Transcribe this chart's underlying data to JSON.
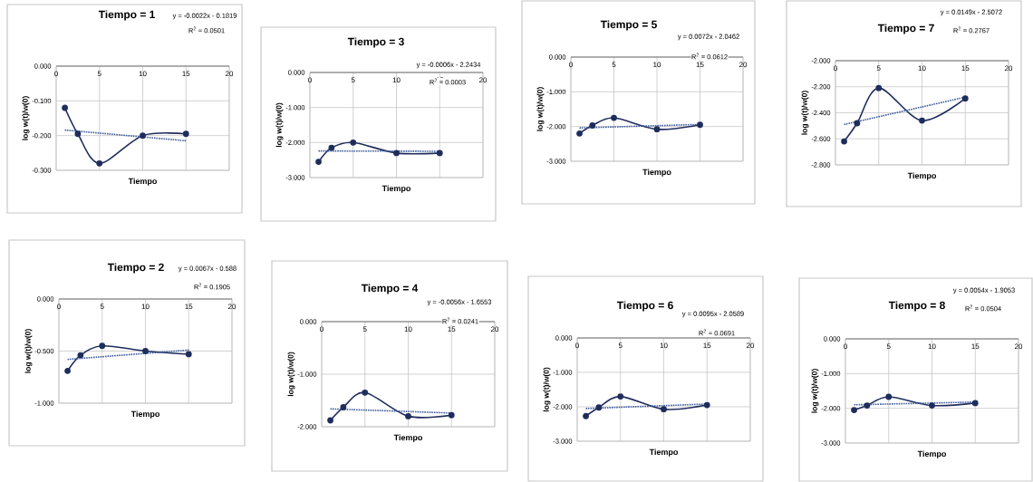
{
  "chart_data": [
    {
      "type": "line",
      "title": "Tiempo = 1",
      "xlabel": "Tiempo",
      "ylabel": "log w(t)/w(0)",
      "annotations": [
        "y = -0.0022x - 0.1819",
        "R$^{2}$ = 0.0501"
      ],
      "xlim": [
        0,
        20
      ],
      "xticks": [
        0,
        5,
        10,
        15,
        20
      ],
      "ylim": [
        -0.3,
        0
      ],
      "yticks": [
        {
          "value": -0.3,
          "label": "-0.300"
        },
        {
          "value": -0.2,
          "label": "-0.200"
        },
        {
          "value": -0.1,
          "label": "-0.100"
        },
        {
          "value": 0,
          "label": "0.000"
        }
      ],
      "grid": true,
      "series": [
        {
          "x": [
            1,
            2.5,
            5,
            10,
            15
          ],
          "values": [
            -0.12,
            -0.195,
            -0.28,
            -0.2,
            -0.195
          ],
          "color": "#1f2d5c",
          "marker": "circle",
          "line_style": "solid"
        },
        {
          "x": [
            1,
            15
          ],
          "values": [
            -0.184,
            -0.215
          ],
          "color": "#3b5a9a",
          "marker": "none",
          "line_style": "dotted"
        }
      ]
    },
    {
      "type": "line",
      "title": "Tiempo = 3",
      "xlabel": "Tiempo",
      "ylabel": "log w(t)/w(0)",
      "annotations": [
        "y = -0.0006x - 2.2434",
        "R$^{2}$ = 0.0003"
      ],
      "xlim": [
        0,
        20
      ],
      "xticks": [
        0,
        5,
        10,
        15,
        20
      ],
      "ylim": [
        -3,
        0
      ],
      "yticks": [
        {
          "value": -3,
          "label": "-3.000"
        },
        {
          "value": -2,
          "label": "-2.000"
        },
        {
          "value": -1,
          "label": "-1.000"
        },
        {
          "value": 0,
          "label": "0.000"
        }
      ],
      "grid": true,
      "series": [
        {
          "x": [
            1,
            2.5,
            5,
            10,
            15
          ],
          "values": [
            -2.55,
            -2.15,
            -2.0,
            -2.3,
            -2.3
          ],
          "color": "#1f2d5c",
          "marker": "circle",
          "line_style": "solid"
        },
        {
          "x": [
            1,
            15
          ],
          "values": [
            -2.24,
            -2.25
          ],
          "color": "#3b5a9a",
          "marker": "none",
          "line_style": "dotted"
        }
      ]
    },
    {
      "type": "line",
      "title": "Tiempo = 5",
      "xlabel": "Tiempo",
      "ylabel": "log w(t)/w(0)",
      "annotations": [
        "y = 0.0072x - 2.0462",
        "R$^{2}$ = 0.0612"
      ],
      "xlim": [
        0,
        20
      ],
      "xticks": [
        0,
        5,
        10,
        15,
        20
      ],
      "ylim": [
        -3,
        0
      ],
      "yticks": [
        {
          "value": -3,
          "label": "-3.000"
        },
        {
          "value": -2,
          "label": "-2.000"
        },
        {
          "value": -1,
          "label": "-1.000"
        },
        {
          "value": 0,
          "label": "0.000"
        }
      ],
      "grid": true,
      "series": [
        {
          "x": [
            1,
            2.5,
            5,
            10,
            15
          ],
          "values": [
            -2.2,
            -1.97,
            -1.75,
            -2.08,
            -1.95
          ],
          "color": "#1f2d5c",
          "marker": "circle",
          "line_style": "solid"
        },
        {
          "x": [
            1,
            15
          ],
          "values": [
            -2.04,
            -1.94
          ],
          "color": "#3b5a9a",
          "marker": "none",
          "line_style": "dotted"
        }
      ]
    },
    {
      "type": "line",
      "title": "Tiempo = 7",
      "xlabel": "Tiempo",
      "ylabel": "log w(t)/w(0)",
      "annotations": [
        "y = 0.0149x - 2.5072",
        "R$^{2}$ = 0.2767"
      ],
      "xlim": [
        0,
        20
      ],
      "xticks": [
        0,
        5,
        10,
        15,
        20
      ],
      "ylim": [
        -2.8,
        -2.0
      ],
      "yticks": [
        {
          "value": -2.8,
          "label": "-2.800"
        },
        {
          "value": -2.6,
          "label": "-2.600"
        },
        {
          "value": -2.4,
          "label": "-2.400"
        },
        {
          "value": -2.2,
          "label": "-2.200"
        },
        {
          "value": -2.0,
          "label": "-2.000"
        }
      ],
      "grid": true,
      "series": [
        {
          "x": [
            1,
            2.5,
            5,
            10,
            15
          ],
          "values": [
            -2.62,
            -2.48,
            -2.21,
            -2.46,
            -2.29
          ],
          "color": "#1f2d5c",
          "marker": "circle",
          "line_style": "solid"
        },
        {
          "x": [
            1,
            15
          ],
          "values": [
            -2.49,
            -2.28
          ],
          "color": "#3b5a9a",
          "marker": "none",
          "line_style": "dotted"
        }
      ]
    },
    {
      "type": "line",
      "title": "Tiempo = 2",
      "xlabel": "Tiempo",
      "ylabel": "log w(t)/w(0)",
      "annotations": [
        "y = 0.0067x - 0.588",
        "R$^{2}$ = 0.1905"
      ],
      "xlim": [
        0,
        20
      ],
      "xticks": [
        0,
        5,
        10,
        15,
        20
      ],
      "ylim": [
        -1,
        0
      ],
      "yticks": [
        {
          "value": -1,
          "label": "-1.000"
        },
        {
          "value": -0.5,
          "label": "-0.500"
        },
        {
          "value": 0,
          "label": "0.000"
        }
      ],
      "grid": true,
      "series": [
        {
          "x": [
            1,
            2.5,
            5,
            10,
            15
          ],
          "values": [
            -0.69,
            -0.54,
            -0.45,
            -0.5,
            -0.53
          ],
          "color": "#1f2d5c",
          "marker": "circle",
          "line_style": "solid"
        },
        {
          "x": [
            1,
            15
          ],
          "values": [
            -0.58,
            -0.49
          ],
          "color": "#3b5a9a",
          "marker": "none",
          "line_style": "dotted"
        }
      ]
    },
    {
      "type": "line",
      "title": "Tiempo = 4",
      "xlabel": "Tiempo",
      "ylabel": "log w(t)/w(0)",
      "annotations": [
        "y = -0.0056x - 1.6553",
        "R$^{2}$ = 0.0241"
      ],
      "xlim": [
        0,
        20
      ],
      "xticks": [
        0,
        5,
        10,
        15,
        20
      ],
      "ylim": [
        -2,
        0
      ],
      "yticks": [
        {
          "value": -2,
          "label": "-2.000"
        },
        {
          "value": -1,
          "label": "-1.000"
        },
        {
          "value": 0,
          "label": "0.000"
        }
      ],
      "grid": true,
      "series": [
        {
          "x": [
            1,
            2.5,
            5,
            10,
            15
          ],
          "values": [
            -1.88,
            -1.63,
            -1.35,
            -1.8,
            -1.78
          ],
          "color": "#1f2d5c",
          "marker": "circle",
          "line_style": "solid"
        },
        {
          "x": [
            1,
            15
          ],
          "values": [
            -1.66,
            -1.74
          ],
          "color": "#3b5a9a",
          "marker": "none",
          "line_style": "dotted"
        }
      ]
    },
    {
      "type": "line",
      "title": "Tiempo = 6",
      "xlabel": "Tiempo",
      "ylabel": "log w(t)/w(0)",
      "annotations": [
        "y = 0.0095x - 2.0589",
        "R$^{2}$ = 0.0691"
      ],
      "xlim": [
        0,
        20
      ],
      "xticks": [
        0,
        5,
        10,
        15,
        20
      ],
      "ylim": [
        -3,
        0
      ],
      "yticks": [
        {
          "value": -3,
          "label": "-3.000"
        },
        {
          "value": -2,
          "label": "-2.000"
        },
        {
          "value": -1,
          "label": "-1.000"
        },
        {
          "value": 0,
          "label": "0.000"
        }
      ],
      "grid": true,
      "series": [
        {
          "x": [
            1,
            2.5,
            5,
            10,
            15
          ],
          "values": [
            -2.27,
            -2.02,
            -1.7,
            -2.07,
            -1.95
          ],
          "color": "#1f2d5c",
          "marker": "circle",
          "line_style": "solid"
        },
        {
          "x": [
            1,
            15
          ],
          "values": [
            -2.05,
            -1.92
          ],
          "color": "#3b5a9a",
          "marker": "none",
          "line_style": "dotted"
        }
      ]
    },
    {
      "type": "line",
      "title": "Tiempo = 8",
      "xlabel": "Tiempo",
      "ylabel": "log w(t)/w(0)",
      "annotations": [
        "y = 0.0054x - 1.9053",
        "R$^{2}$ = 0.0504"
      ],
      "xlim": [
        0,
        20
      ],
      "xticks": [
        0,
        5,
        10,
        15,
        20
      ],
      "ylim": [
        -3,
        0
      ],
      "yticks": [
        {
          "value": -3,
          "label": "-3.000"
        },
        {
          "value": -2,
          "label": "-2.000"
        },
        {
          "value": -1,
          "label": "-1.000"
        },
        {
          "value": 0,
          "label": "0.000"
        }
      ],
      "grid": true,
      "series": [
        {
          "x": [
            1,
            2.5,
            5,
            10,
            15
          ],
          "values": [
            -2.05,
            -1.92,
            -1.67,
            -1.92,
            -1.85
          ],
          "color": "#1f2d5c",
          "marker": "circle",
          "line_style": "solid"
        },
        {
          "x": [
            1,
            15
          ],
          "values": [
            -1.9,
            -1.82
          ],
          "color": "#3b5a9a",
          "marker": "none",
          "line_style": "dotted"
        }
      ]
    }
  ]
}
